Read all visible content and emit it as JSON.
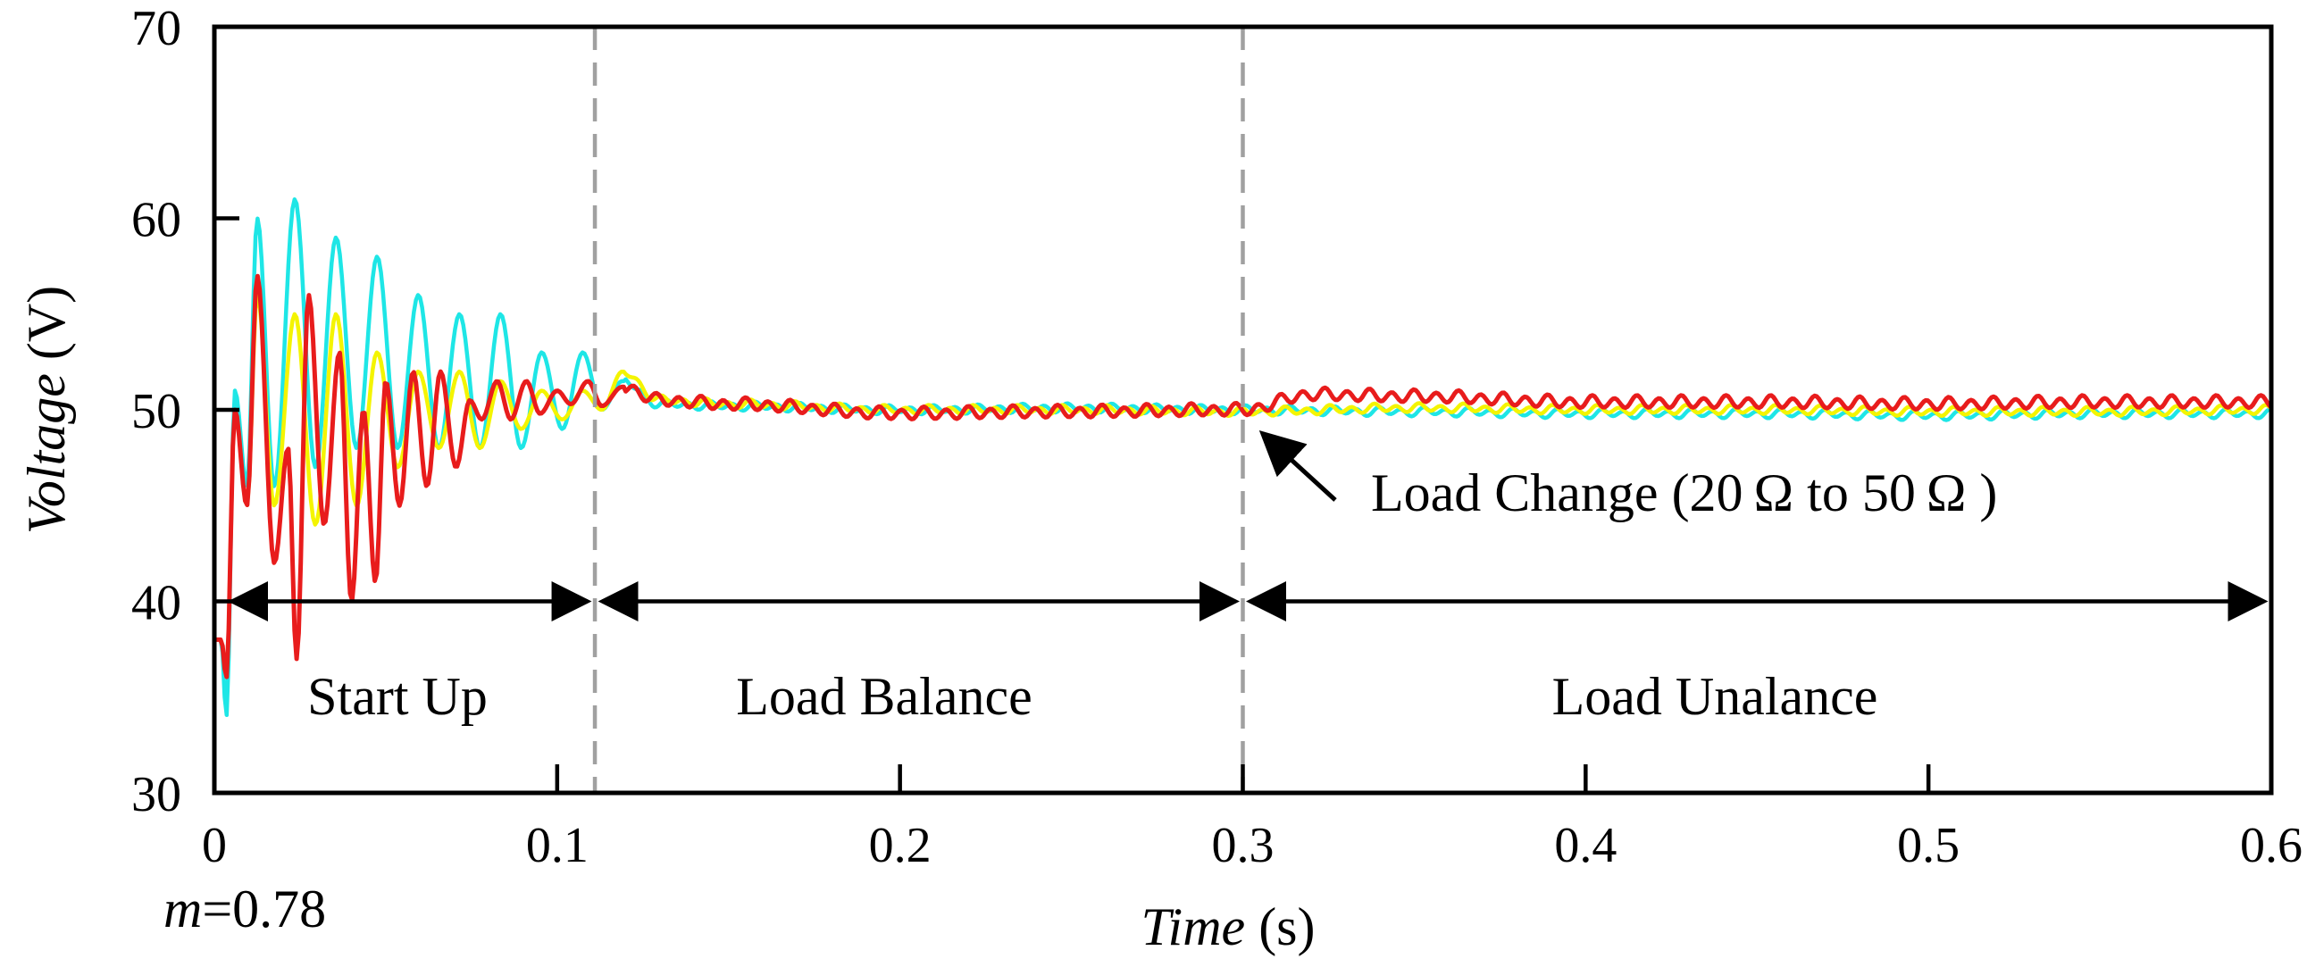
{
  "chart_data": {
    "type": "line",
    "title": "",
    "xlabel_italic": "Time",
    "xlabel_unit": " (s)",
    "ylabel_italic": "Voltage",
    "ylabel_unit": " (V)",
    "xlim": [
      0,
      0.6
    ],
    "ylim": [
      30,
      70
    ],
    "x_ticks": [
      0,
      0.1,
      0.2,
      0.3,
      0.4,
      0.5,
      0.6
    ],
    "x_tick_labels": [
      "0",
      "0.1",
      "0.2",
      "0.3",
      "0.4",
      "0.5",
      "0.6"
    ],
    "y_ticks": [
      30,
      40,
      50,
      60,
      70
    ],
    "y_tick_labels": [
      "30",
      "40",
      "50",
      "60",
      "70"
    ],
    "grid": false,
    "legend": "none",
    "modulation_label_var": "m",
    "modulation_label_value": "=0.78",
    "event_lines_x": [
      0.111,
      0.3
    ],
    "arrow_y": 40,
    "regions": [
      {
        "label": "Start Up",
        "x_start": 0.003,
        "x_end": 0.111
      },
      {
        "label": "Load Balance",
        "x_start": 0.111,
        "x_end": 0.3
      },
      {
        "label": "Load Unalance",
        "x_start": 0.3,
        "x_end": 0.6
      }
    ],
    "annotation": {
      "text": "Load Change (20 Ω  to 50 Ω  )",
      "target_x": 0.3,
      "target_y": 49.7
    },
    "series": [
      {
        "name": "cyan",
        "color": "#1ee6e6",
        "points": [
          [
            0,
            38
          ],
          [
            0.002,
            38
          ],
          [
            0.0035,
            34
          ],
          [
            0.006,
            51
          ],
          [
            0.0095,
            46
          ],
          [
            0.0125,
            60
          ],
          [
            0.0175,
            46
          ],
          [
            0.0235,
            61
          ],
          [
            0.0295,
            47
          ],
          [
            0.0355,
            59
          ],
          [
            0.0415,
            48
          ],
          [
            0.0475,
            58
          ],
          [
            0.0535,
            48
          ],
          [
            0.0595,
            56
          ],
          [
            0.0655,
            48
          ],
          [
            0.0715,
            55
          ],
          [
            0.0775,
            48
          ],
          [
            0.0835,
            55
          ],
          [
            0.0895,
            48
          ],
          [
            0.0955,
            53
          ],
          [
            0.1015,
            49
          ],
          [
            0.1075,
            53
          ],
          [
            0.113,
            50
          ],
          [
            0.119,
            51.5
          ],
          [
            0.13,
            50.3
          ],
          [
            0.15,
            50.2
          ],
          [
            0.2,
            50
          ],
          [
            0.25,
            50.1
          ],
          [
            0.3,
            50
          ],
          [
            0.35,
            49.9
          ],
          [
            0.4,
            49.8
          ],
          [
            0.45,
            49.8
          ],
          [
            0.5,
            49.7
          ],
          [
            0.55,
            49.8
          ],
          [
            0.6,
            49.8
          ]
        ]
      },
      {
        "name": "yellow",
        "color": "#f4f400",
        "points": [
          [
            0,
            38
          ],
          [
            0.002,
            38
          ],
          [
            0.0035,
            36
          ],
          [
            0.006,
            50
          ],
          [
            0.0095,
            45
          ],
          [
            0.0125,
            56
          ],
          [
            0.0175,
            45
          ],
          [
            0.0235,
            55
          ],
          [
            0.0295,
            44
          ],
          [
            0.0355,
            55
          ],
          [
            0.0415,
            45
          ],
          [
            0.0475,
            53
          ],
          [
            0.0535,
            47
          ],
          [
            0.0595,
            52
          ],
          [
            0.0655,
            48
          ],
          [
            0.0715,
            52
          ],
          [
            0.0775,
            48
          ],
          [
            0.0835,
            51.5
          ],
          [
            0.0895,
            49
          ],
          [
            0.0955,
            51
          ],
          [
            0.1015,
            49.5
          ],
          [
            0.1075,
            51
          ],
          [
            0.113,
            50
          ],
          [
            0.119,
            52
          ],
          [
            0.13,
            50.5
          ],
          [
            0.15,
            50.3
          ],
          [
            0.2,
            50
          ],
          [
            0.25,
            50
          ],
          [
            0.3,
            49.9
          ],
          [
            0.35,
            50.1
          ],
          [
            0.4,
            50
          ],
          [
            0.45,
            50
          ],
          [
            0.5,
            49.9
          ],
          [
            0.55,
            49.9
          ],
          [
            0.6,
            50
          ]
        ]
      },
      {
        "name": "red",
        "color": "#e81c1c",
        "points": [
          [
            0,
            38
          ],
          [
            0.002,
            38
          ],
          [
            0.0035,
            36
          ],
          [
            0.006,
            50
          ],
          [
            0.0095,
            45
          ],
          [
            0.0125,
            57
          ],
          [
            0.0175,
            42
          ],
          [
            0.0215,
            48
          ],
          [
            0.024,
            37
          ],
          [
            0.0275,
            56
          ],
          [
            0.032,
            44
          ],
          [
            0.0365,
            53
          ],
          [
            0.04,
            40
          ],
          [
            0.0435,
            50
          ],
          [
            0.047,
            41
          ],
          [
            0.05,
            51.5
          ],
          [
            0.054,
            45
          ],
          [
            0.058,
            52
          ],
          [
            0.062,
            46
          ],
          [
            0.066,
            52
          ],
          [
            0.0705,
            47
          ],
          [
            0.0745,
            50.5
          ],
          [
            0.078,
            49.5
          ],
          [
            0.0825,
            51.5
          ],
          [
            0.0865,
            49.5
          ],
          [
            0.091,
            51.5
          ],
          [
            0.095,
            49.8
          ],
          [
            0.1,
            51
          ],
          [
            0.104,
            50.3
          ],
          [
            0.109,
            51.5
          ],
          [
            0.113,
            50.2
          ],
          [
            0.119,
            51.2
          ],
          [
            0.13,
            50.5
          ],
          [
            0.15,
            50.3
          ],
          [
            0.2,
            49.8
          ],
          [
            0.25,
            49.9
          ],
          [
            0.3,
            50
          ],
          [
            0.32,
            50.8
          ],
          [
            0.35,
            50.7
          ],
          [
            0.4,
            50.4
          ],
          [
            0.45,
            50.4
          ],
          [
            0.5,
            50.3
          ],
          [
            0.55,
            50.4
          ],
          [
            0.6,
            50.4
          ]
        ]
      }
    ]
  }
}
